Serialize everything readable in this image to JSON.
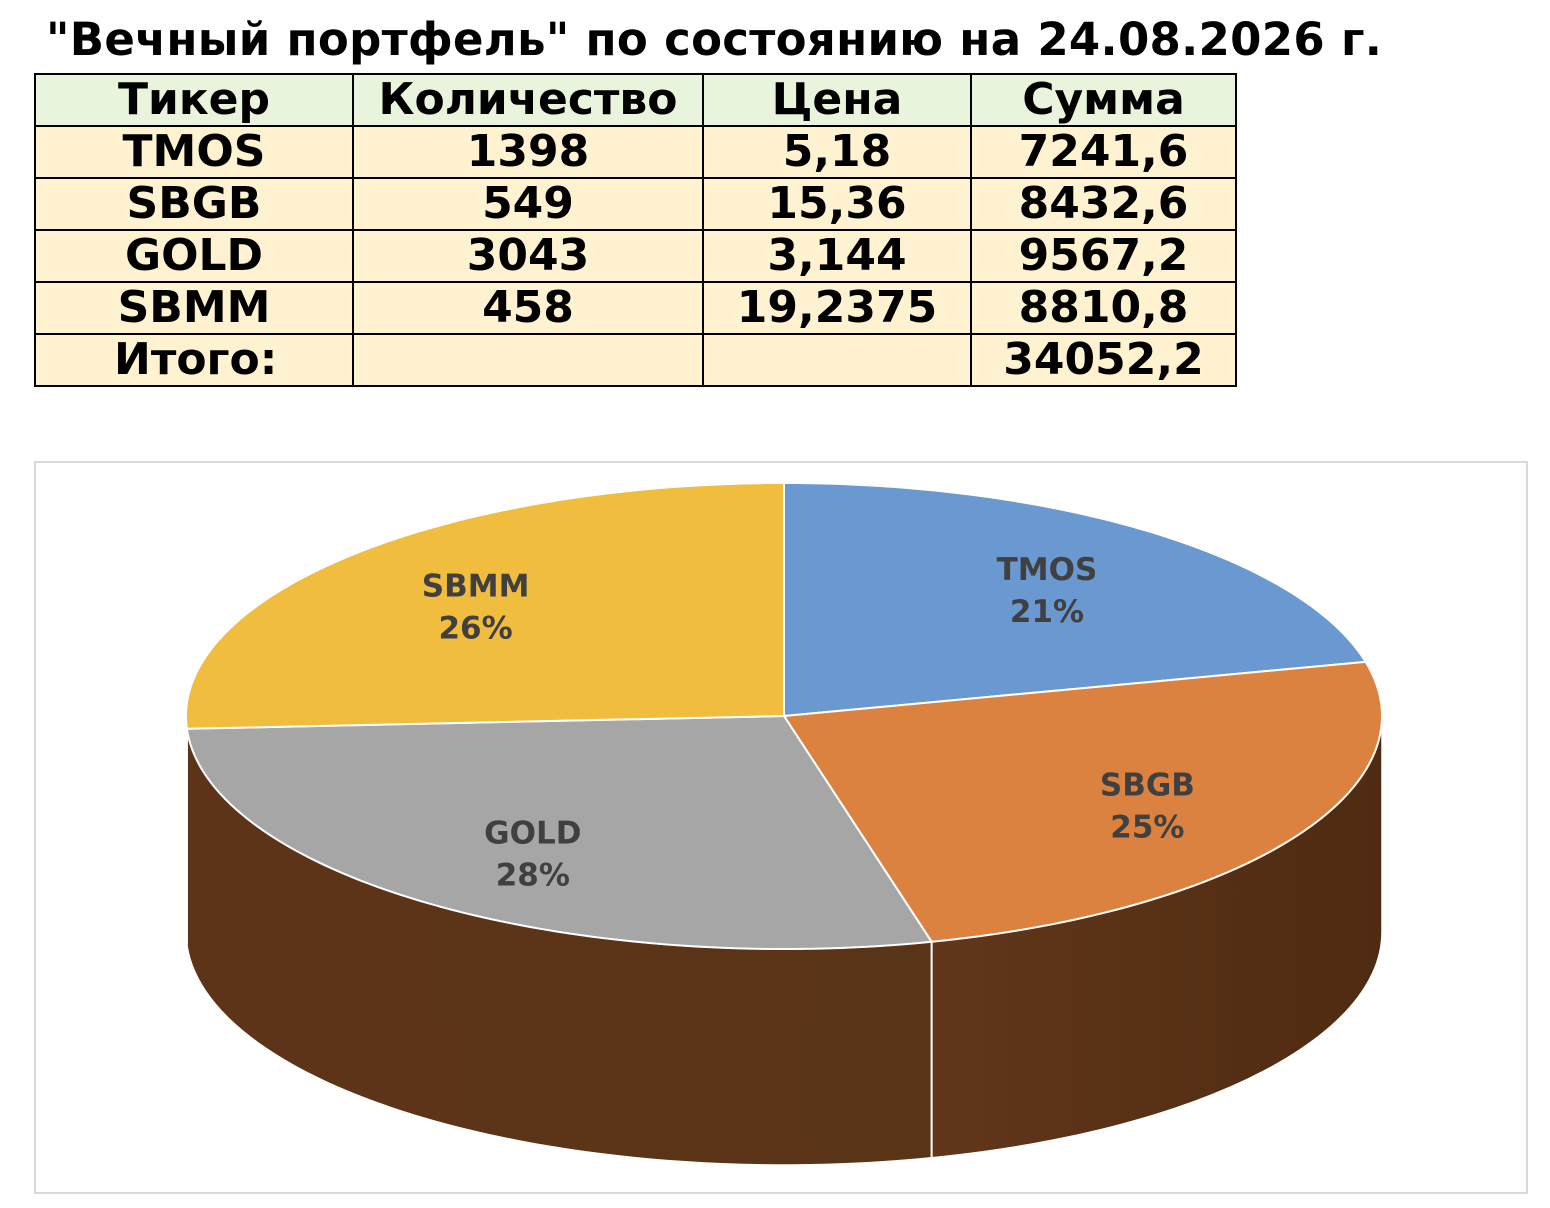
{
  "title": "\"Вечный портфель\" по состоянию на 24.08.2026 г.",
  "table": {
    "headers": [
      "Тикер",
      "Количество",
      "Цена",
      "Сумма"
    ],
    "rows": [
      {
        "ticker": "TMOS",
        "quantity": "1398",
        "price": "5,18",
        "sum": "7241,6"
      },
      {
        "ticker": "SBGB",
        "quantity": "549",
        "price": "15,36",
        "sum": "8432,6"
      },
      {
        "ticker": "GOLD",
        "quantity": "3043",
        "price": "3,144",
        "sum": "9567,2"
      },
      {
        "ticker": "SBMM",
        "quantity": "458",
        "price": "19,2375",
        "sum": "8810,8"
      }
    ],
    "total": {
      "label": "Итого:",
      "quantity": "",
      "price": "",
      "sum": "34052,2"
    }
  },
  "chart_data": {
    "type": "pie",
    "style": "3d",
    "categories": [
      "TMOS",
      "SBGB",
      "GOLD",
      "SBMM"
    ],
    "values": [
      7241.6,
      8432.6,
      9567.2,
      8810.8
    ],
    "percent_labels": [
      "21%",
      "25%",
      "28%",
      "26%"
    ],
    "colors": [
      "#6a98d0",
      "#dc8241",
      "#a6a6a6",
      "#f0bd3e"
    ],
    "side_colors": [
      "#3d5e8a",
      "#62361a",
      "#6e6e6e",
      "#9a7420"
    ],
    "start_angle_deg": 0,
    "direction": "clockwise",
    "legend": "none",
    "data_labels": "category and percent"
  }
}
